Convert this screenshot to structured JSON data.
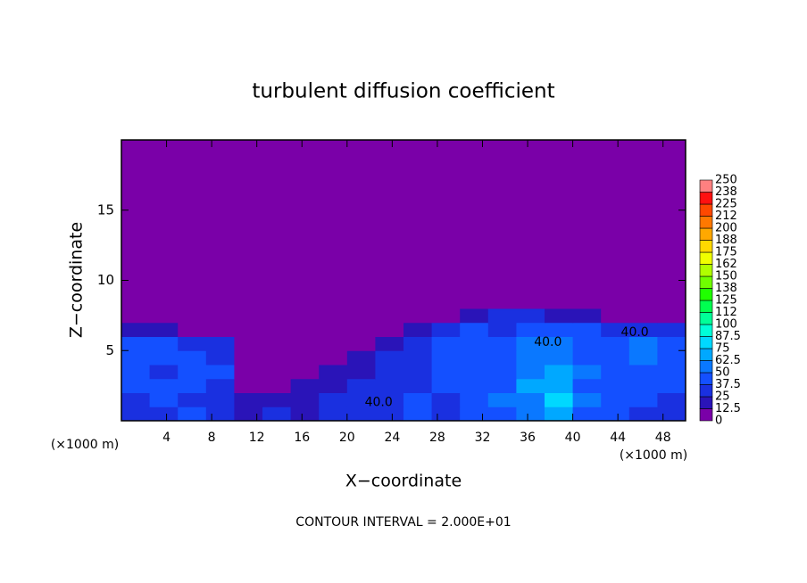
{
  "chart_data": {
    "type": "contour",
    "title": "turbulent diffusion coefficient",
    "xlabel": "X−coordinate",
    "ylabel": "Z−coordinate",
    "x_unit": "(×1000 m)",
    "footnote": "CONTOUR INTERVAL = 2.000E+01",
    "xlim": [
      0,
      50
    ],
    "ylim": [
      0,
      20
    ],
    "xticks": [
      4,
      8,
      12,
      16,
      20,
      24,
      28,
      32,
      36,
      40,
      44,
      48
    ],
    "yticks": [
      5,
      10,
      15
    ],
    "x": [
      1.25,
      3.75,
      6.25,
      8.75,
      11.25,
      13.75,
      16.25,
      18.75,
      21.25,
      23.75,
      26.25,
      28.75,
      31.25,
      33.75,
      36.25,
      38.75,
      41.25,
      43.75,
      46.25,
      48.75
    ],
    "y": [
      0.5,
      1.5,
      2.5,
      3.5,
      4.5,
      5.5,
      6.5,
      7.5,
      8.5,
      9.5
    ],
    "values": [
      [
        30,
        35,
        40,
        30,
        20,
        25,
        20,
        25,
        30,
        35,
        40,
        35,
        40,
        45,
        55,
        70,
        45,
        40,
        35,
        30
      ],
      [
        35,
        40,
        35,
        30,
        15,
        15,
        20,
        25,
        30,
        35,
        40,
        35,
        45,
        50,
        60,
        75,
        50,
        40,
        40,
        35
      ],
      [
        40,
        45,
        40,
        35,
        10,
        10,
        15,
        20,
        25,
        30,
        35,
        40,
        45,
        45,
        65,
        70,
        45,
        45,
        40,
        40
      ],
      [
        40,
        35,
        45,
        40,
        10,
        8,
        10,
        15,
        20,
        30,
        35,
        40,
        45,
        40,
        60,
        65,
        50,
        45,
        40,
        40
      ],
      [
        45,
        40,
        40,
        35,
        8,
        6,
        8,
        10,
        15,
        25,
        35,
        45,
        40,
        45,
        55,
        60,
        45,
        40,
        50,
        45
      ],
      [
        40,
        45,
        35,
        30,
        5,
        4,
        5,
        6,
        8,
        15,
        30,
        40,
        45,
        40,
        50,
        50,
        45,
        45,
        55,
        40
      ],
      [
        20,
        15,
        10,
        8,
        4,
        3,
        3,
        4,
        5,
        6,
        15,
        30,
        40,
        35,
        45,
        40,
        40,
        35,
        30,
        25
      ],
      [
        2,
        2,
        2,
        2,
        3,
        2,
        2,
        2,
        2,
        2,
        5,
        10,
        20,
        25,
        30,
        20,
        15,
        10,
        8,
        5
      ],
      [
        0,
        0,
        0,
        0,
        0,
        0,
        0,
        0,
        0,
        0,
        0,
        2,
        5,
        8,
        10,
        5,
        2,
        0,
        0,
        0
      ],
      [
        0,
        0,
        0,
        0,
        0,
        0,
        0,
        0,
        0,
        0,
        0,
        0,
        2,
        4,
        8,
        2,
        0,
        0,
        0,
        0
      ]
    ],
    "levels": [
      0,
      12.5,
      25,
      37.5,
      50,
      62.5,
      75,
      87.5,
      100,
      {
        "value": 112.5,
        "label": "112"
      },
      125,
      {
        "value": 137.5,
        "label": "138"
      },
      150,
      {
        "value": 162.5,
        "label": "162"
      },
      175,
      {
        "value": 187.5,
        "label": "188"
      },
      200,
      {
        "value": 212.5,
        "label": "212"
      },
      225,
      {
        "value": 237.5,
        "label": "238"
      },
      250
    ],
    "colors": [
      "#7a00a8",
      "#2a14b8",
      "#1a30e0",
      "#1450ff",
      "#0a78ff",
      "#00a8ff",
      "#00d8ff",
      "#00ffd8",
      "#00ff98",
      "#00ff50",
      "#20ff00",
      "#70ff00",
      "#b0ff00",
      "#f0ff00",
      "#ffd800",
      "#ffa800",
      "#ff7800",
      "#ff4800",
      "#ff1010",
      "#ff8080"
    ],
    "annotations": [
      {
        "text": "40.0",
        "x": 22.8,
        "y": 1.3
      },
      {
        "text": "40.0",
        "x": 37.8,
        "y": 5.6
      },
      {
        "text": "40.0",
        "x": 45.5,
        "y": 6.3
      }
    ]
  }
}
